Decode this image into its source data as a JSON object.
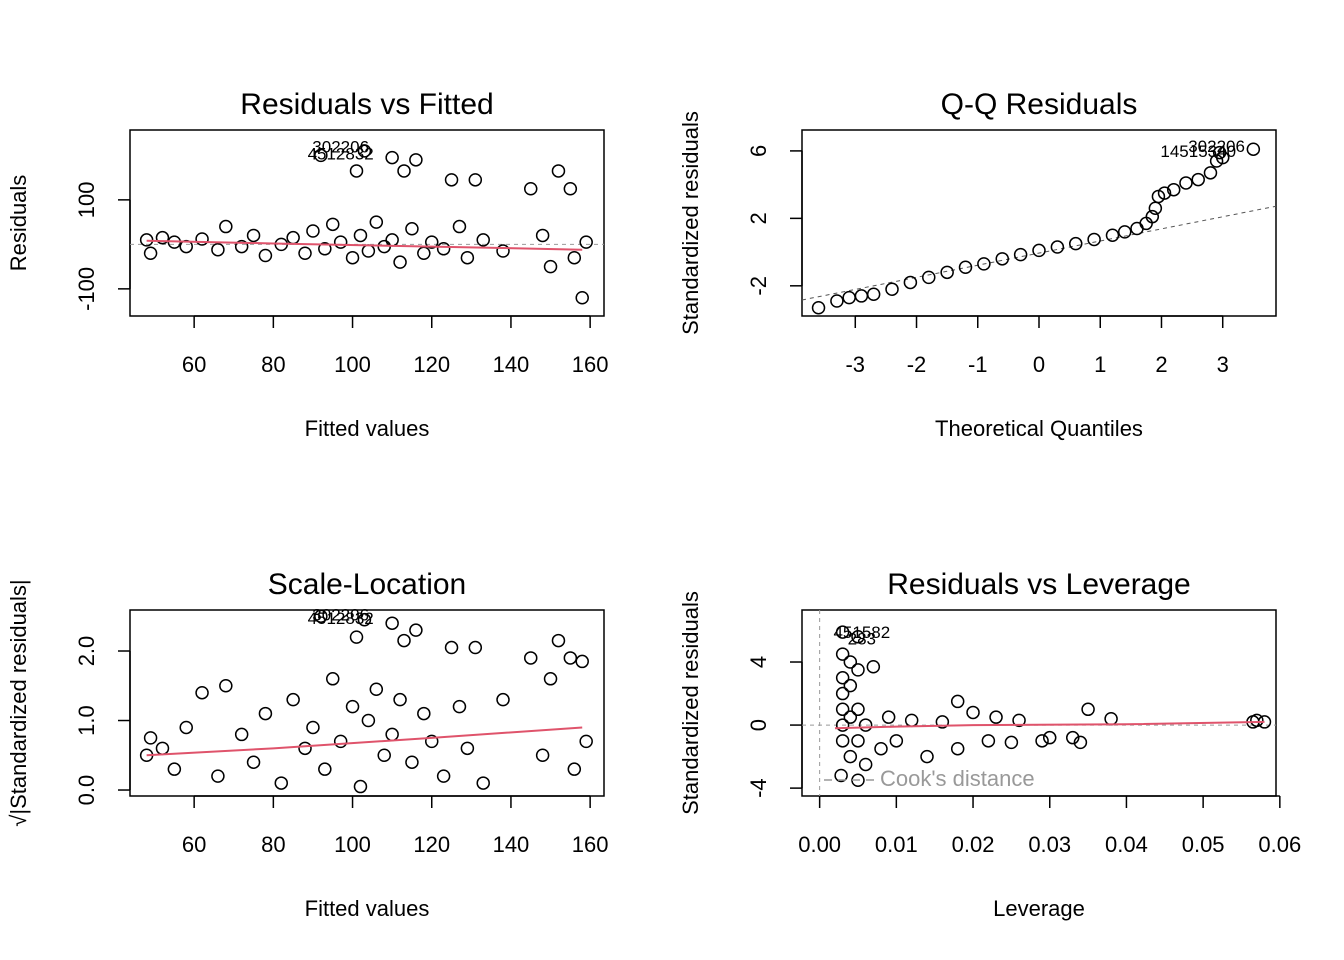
{
  "chart_data": [
    {
      "type": "scatter",
      "title": "Residuals vs Fitted",
      "xlabel": "Fitted values",
      "ylabel": "Residuals",
      "xlim": [
        43.8,
        163.5
      ],
      "ylim": [
        -161,
        257
      ],
      "xticks": [
        60,
        80,
        100,
        120,
        140,
        160
      ],
      "yticks": [
        -100,
        100
      ],
      "hline": 0,
      "x": [
        48,
        49,
        52,
        55,
        58,
        62,
        66,
        68,
        72,
        75,
        78,
        82,
        85,
        88,
        90,
        93,
        95,
        97,
        100,
        102,
        104,
        106,
        108,
        110,
        112,
        115,
        118,
        120,
        123,
        125,
        127,
        129,
        131,
        133,
        138,
        145,
        148,
        150,
        152,
        155,
        156,
        158,
        159,
        92,
        103,
        110,
        116,
        101,
        113
      ],
      "y": [
        10,
        -20,
        15,
        5,
        -5,
        12,
        -12,
        40,
        -5,
        20,
        -25,
        0,
        15,
        -20,
        30,
        -10,
        45,
        5,
        -30,
        20,
        -15,
        50,
        -5,
        10,
        -40,
        35,
        -20,
        5,
        -10,
        145,
        40,
        -30,
        145,
        10,
        -15,
        125,
        20,
        -50,
        165,
        125,
        -30,
        -120,
        5,
        200,
        210,
        195,
        190,
        165,
        165
      ],
      "smooth": {
        "color": "#DF536B",
        "x": [
          48,
          80,
          120,
          158
        ],
        "y": [
          8,
          2,
          -5,
          -12
        ]
      },
      "point_labels": [
        {
          "x": 97,
          "y": 217,
          "label": "302206"
        },
        {
          "x": 97,
          "y": 201,
          "label": "4512832"
        }
      ]
    },
    {
      "type": "qq",
      "title": "Q-Q Residuals",
      "xlabel": "Theoretical Quantiles",
      "ylabel": "Standardized residuals",
      "xlim": [
        -3.87,
        3.87
      ],
      "ylim": [
        -3.79,
        7.24
      ],
      "xticks": [
        -3,
        -2,
        -1,
        0,
        1,
        2,
        3
      ],
      "yticks": [
        -2,
        2,
        6
      ],
      "x": [
        -3.6,
        -3.3,
        -3.1,
        -2.9,
        -2.7,
        -2.4,
        -2.1,
        -1.8,
        -1.5,
        -1.2,
        -0.9,
        -0.6,
        -0.3,
        0,
        0.3,
        0.6,
        0.9,
        1.2,
        1.4,
        1.6,
        1.75,
        1.85,
        1.9,
        1.95,
        2.05,
        2.2,
        2.4,
        2.6,
        2.8,
        2.9,
        3.0,
        3.5,
        2.95
      ],
      "y": [
        -3.3,
        -2.9,
        -2.7,
        -2.6,
        -2.5,
        -2.2,
        -1.8,
        -1.5,
        -1.2,
        -0.9,
        -0.7,
        -0.4,
        -0.15,
        0.1,
        0.3,
        0.5,
        0.75,
        1.0,
        1.2,
        1.4,
        1.7,
        2.1,
        2.6,
        3.3,
        3.5,
        3.7,
        4.1,
        4.3,
        4.7,
        5.4,
        5.6,
        6.1,
        5.9
      ],
      "ref_line": {
        "x": [
          -3.87,
          3.87
        ],
        "y": [
          -2.84,
          2.72
        ]
      },
      "point_labels": [
        {
          "x": 2.9,
          "y": 6.2,
          "label": "302206"
        },
        {
          "x": 2.6,
          "y": 5.9,
          "label": "14515340"
        }
      ]
    },
    {
      "type": "scatter",
      "title": "Scale-Location",
      "xlabel": "Fitted values",
      "ylabel": "√|Standardized residuals|",
      "xlim": [
        43.8,
        163.5
      ],
      "ylim": [
        -0.086,
        2.59
      ],
      "xticks": [
        60,
        80,
        100,
        120,
        140,
        160
      ],
      "yticks": [
        {
          "value": 0,
          "label": "0.0"
        },
        {
          "value": 1,
          "label": "1.0"
        },
        {
          "value": 2,
          "label": "2.0"
        }
      ],
      "x": [
        48,
        49,
        52,
        55,
        58,
        62,
        66,
        68,
        72,
        75,
        78,
        82,
        85,
        88,
        90,
        93,
        95,
        97,
        100,
        102,
        104,
        106,
        108,
        110,
        112,
        115,
        118,
        120,
        123,
        125,
        127,
        129,
        131,
        133,
        138,
        145,
        148,
        150,
        152,
        155,
        156,
        158,
        159,
        92,
        103,
        110,
        116,
        101,
        113
      ],
      "y": [
        0.5,
        0.75,
        0.6,
        0.3,
        0.9,
        1.4,
        0.2,
        1.5,
        0.8,
        0.4,
        1.1,
        0.1,
        1.3,
        0.6,
        0.9,
        0.3,
        1.6,
        0.7,
        1.2,
        0.05,
        1.0,
        1.45,
        0.5,
        0.8,
        1.3,
        0.4,
        1.1,
        0.7,
        0.2,
        2.05,
        1.2,
        0.6,
        2.05,
        0.1,
        1.3,
        1.9,
        0.5,
        1.6,
        2.15,
        1.9,
        0.3,
        1.85,
        0.7,
        2.5,
        2.45,
        2.4,
        2.3,
        2.2,
        2.15
      ],
      "smooth": {
        "color": "#DF536B",
        "x": [
          48,
          80,
          120,
          158
        ],
        "y": [
          0.5,
          0.6,
          0.75,
          0.9
        ]
      },
      "point_labels": [
        {
          "x": 97,
          "y": 2.5,
          "label": "302206"
        },
        {
          "x": 97,
          "y": 2.45,
          "label": "4512832"
        }
      ]
    },
    {
      "type": "scatter",
      "title": "Residuals vs Leverage",
      "xlabel": "Leverage",
      "ylabel": "Standardized residuals",
      "xlim": [
        -0.0023,
        0.0595
      ],
      "ylim": [
        -4.5,
        7.3
      ],
      "xticks": [
        {
          "value": 0,
          "label": "0.00"
        },
        {
          "value": 0.01,
          "label": "0.01"
        },
        {
          "value": 0.02,
          "label": "0.02"
        },
        {
          "value": 0.03,
          "label": "0.03"
        },
        {
          "value": 0.04,
          "label": "0.04"
        },
        {
          "value": 0.05,
          "label": "0.05"
        },
        {
          "value": 0.06,
          "label": "0.06"
        }
      ],
      "yticks": [
        -4,
        0,
        4
      ],
      "hline": 0,
      "vline": 0,
      "x": [
        0.0028,
        0.003,
        0.003,
        0.003,
        0.003,
        0.003,
        0.003,
        0.003,
        0.004,
        0.004,
        0.004,
        0.004,
        0.005,
        0.005,
        0.005,
        0.005,
        0.005,
        0.006,
        0.006,
        0.007,
        0.008,
        0.009,
        0.01,
        0.012,
        0.014,
        0.016,
        0.018,
        0.018,
        0.02,
        0.022,
        0.023,
        0.025,
        0.026,
        0.029,
        0.03,
        0.033,
        0.034,
        0.035,
        0.038,
        0.0565,
        0.057,
        0.058
      ],
      "y": [
        -3.2,
        -1,
        0,
        1,
        2,
        3,
        4.5,
        5.9,
        -2,
        0.5,
        2.5,
        4,
        -3.5,
        -1,
        1,
        3.5,
        5.6,
        -2.5,
        0,
        3.7,
        -1.5,
        0.5,
        -1,
        0.3,
        -2,
        0.2,
        1.5,
        -1.5,
        0.8,
        -1,
        0.5,
        -1.1,
        0.3,
        -1,
        -0.8,
        -0.8,
        -1.1,
        1.0,
        0.4,
        0.2,
        0.3,
        0.2
      ],
      "smooth": {
        "color": "#DF536B",
        "x": [
          0.002,
          0.01,
          0.02,
          0.04,
          0.058
        ],
        "y": [
          -0.2,
          -0.1,
          0,
          0.05,
          0.2
        ]
      },
      "point_labels": [
        {
          "x": 0.0055,
          "y": 5.8,
          "label": "451582"
        },
        {
          "x": 0.0055,
          "y": 5.4,
          "label": "283"
        }
      ],
      "cooks": {
        "name": "Cook's distance",
        "color": "#999999"
      },
      "legend": "bottom-left"
    }
  ]
}
